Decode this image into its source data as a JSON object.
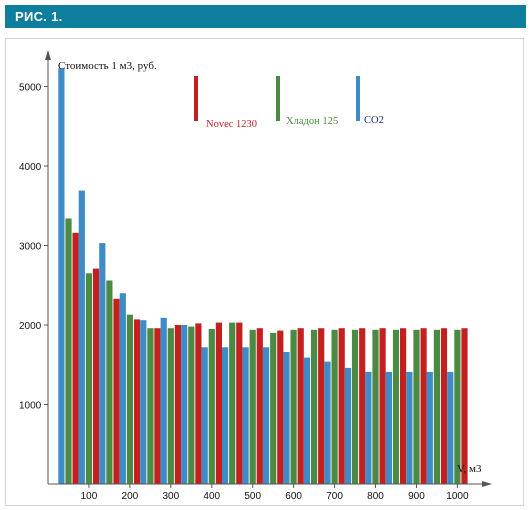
{
  "header": {
    "title": "РИС. 1."
  },
  "colors": {
    "co2": "#3d8cc8",
    "hladon": "#4a8a42",
    "novec": "#c42020",
    "header_bg": "#0d7e9c"
  },
  "chart_data": {
    "type": "bar",
    "ylabel": "Стоимость  1 м3, руб.",
    "xlabel": "V, м3",
    "ylim": [
      0,
      5600
    ],
    "xlim": [
      0,
      1075
    ],
    "y_ticks": [
      1000,
      2000,
      3000,
      4000,
      5000
    ],
    "x_ticks": [
      100,
      200,
      300,
      400,
      500,
      600,
      700,
      800,
      900,
      1000
    ],
    "grid": false,
    "legend_position": "top",
    "x": [
      50,
      100,
      150,
      200,
      250,
      300,
      350,
      400,
      450,
      500,
      550,
      600,
      650,
      700,
      750,
      800,
      850,
      900,
      950,
      1000
    ],
    "series": [
      {
        "name": "CO2",
        "color": "#3d8cc8",
        "values": [
          5230,
          3690,
          3030,
          2400,
          2060,
          2090,
          2000,
          1720,
          1720,
          1720,
          1720,
          1660,
          1590,
          1540,
          1460,
          1410,
          1410,
          1410,
          1410,
          1410
        ]
      },
      {
        "name": "Хладон 125",
        "color": "#4a8a42",
        "values": [
          3340,
          2650,
          2560,
          2130,
          1960,
          1960,
          1980,
          1950,
          2030,
          1940,
          1900,
          1940,
          1940,
          1940,
          1940,
          1940,
          1940,
          1940,
          1940,
          1940
        ]
      },
      {
        "name": "Novec 1230",
        "color": "#c42020",
        "values": [
          3160,
          2710,
          2330,
          2070,
          1960,
          2000,
          2020,
          2030,
          2030,
          1960,
          1930,
          1960,
          1960,
          1960,
          1960,
          1960,
          1960,
          1960,
          1960,
          1960
        ]
      }
    ]
  }
}
